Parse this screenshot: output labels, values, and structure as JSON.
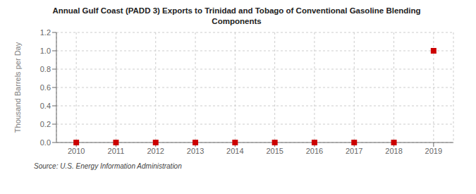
{
  "chart_data": {
    "type": "scatter",
    "title": "Annual Gulf Coast (PADD 3) Exports to Trinidad and Tobago of Conventional Gasoline Blending\nComponents",
    "ylabel": "Thousand Barrels per Day",
    "annotations": [
      "Source: U.S. Energy Information Administration"
    ],
    "x": [
      2010,
      2011,
      2012,
      2013,
      2014,
      2015,
      2016,
      2017,
      2018,
      2019
    ],
    "values": [
      0.0,
      0.0,
      0.0,
      0.0,
      0.0,
      0.0,
      0.0,
      0.0,
      0.0,
      1.0
    ],
    "color": "#cc0000",
    "marker": "square",
    "xlim": [
      2009.5,
      2019.5
    ],
    "xticks": [
      2010,
      2011,
      2012,
      2013,
      2014,
      2015,
      2016,
      2017,
      2018,
      2019
    ],
    "ylim": [
      0.0,
      1.2
    ],
    "yticks": [
      {
        "value": 0.0,
        "label": "0.0"
      },
      0.2,
      0.4,
      0.6,
      0.8,
      {
        "value": 1.0,
        "label": "1.0"
      },
      1.2
    ],
    "grid": true
  }
}
